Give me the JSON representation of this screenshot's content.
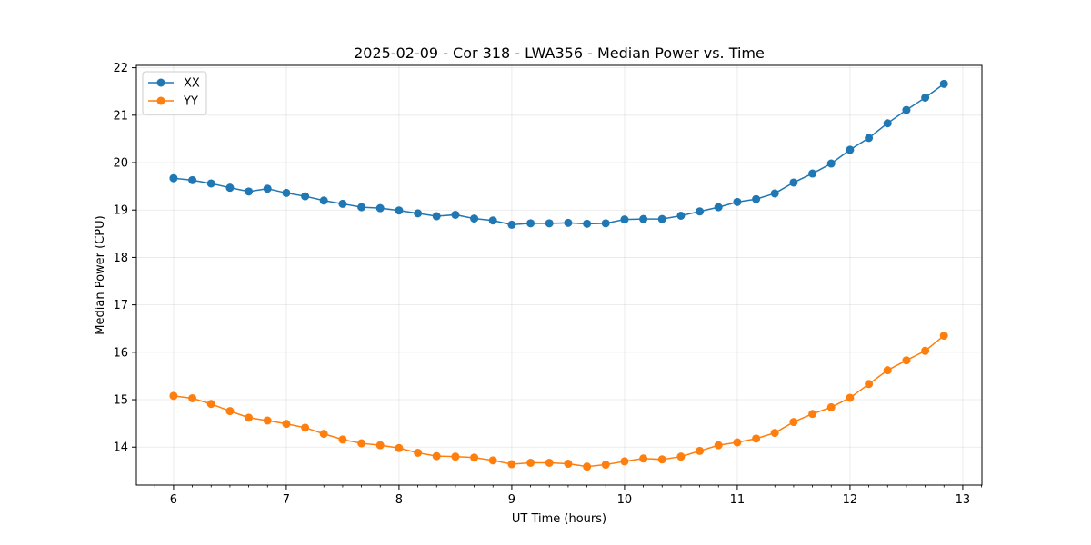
{
  "chart_data": {
    "type": "line",
    "title": "2025-02-09 - Cor 318 - LWA356 - Median Power vs. Time",
    "xlabel": "UT Time (hours)",
    "ylabel": "Median Power (CPU)",
    "xlim": [
      5.67,
      13.17
    ],
    "ylim": [
      13.2,
      22.05
    ],
    "xticks": [
      6,
      7,
      8,
      9,
      10,
      11,
      12,
      13
    ],
    "yticks": [
      14,
      15,
      16,
      17,
      18,
      19,
      20,
      21,
      22
    ],
    "grid": true,
    "legend_position": "upper-left",
    "x": [
      6.0,
      6.167,
      6.333,
      6.5,
      6.667,
      6.833,
      7.0,
      7.167,
      7.333,
      7.5,
      7.667,
      7.833,
      8.0,
      8.167,
      8.333,
      8.5,
      8.667,
      8.833,
      9.0,
      9.167,
      9.333,
      9.5,
      9.667,
      9.833,
      10.0,
      10.167,
      10.333,
      10.5,
      10.667,
      10.833,
      11.0,
      11.167,
      11.333,
      11.5,
      11.667,
      11.833,
      12.0,
      12.167,
      12.333,
      12.5,
      12.667,
      12.833
    ],
    "series": [
      {
        "name": "XX",
        "color": "#1f77b4",
        "values": [
          19.67,
          19.63,
          19.56,
          19.47,
          19.39,
          19.45,
          19.36,
          19.29,
          19.2,
          19.13,
          19.06,
          19.04,
          18.99,
          18.93,
          18.87,
          18.9,
          18.82,
          18.78,
          18.69,
          18.72,
          18.72,
          18.73,
          18.71,
          18.72,
          18.8,
          18.81,
          18.81,
          18.88,
          18.97,
          19.06,
          19.17,
          19.23,
          19.35,
          19.58,
          19.77,
          19.98,
          20.27,
          20.52,
          20.83,
          21.11,
          21.37,
          21.66
        ]
      },
      {
        "name": "YY",
        "color": "#ff7f0e",
        "values": [
          15.08,
          15.03,
          14.91,
          14.76,
          14.62,
          14.56,
          14.49,
          14.41,
          14.28,
          14.16,
          14.08,
          14.04,
          13.98,
          13.88,
          13.81,
          13.8,
          13.78,
          13.72,
          13.64,
          13.67,
          13.67,
          13.65,
          13.59,
          13.63,
          13.7,
          13.76,
          13.74,
          13.8,
          13.92,
          14.04,
          14.1,
          14.18,
          14.3,
          14.53,
          14.7,
          14.84,
          15.04,
          15.33,
          15.62,
          15.83,
          16.03,
          16.35
        ]
      }
    ]
  }
}
